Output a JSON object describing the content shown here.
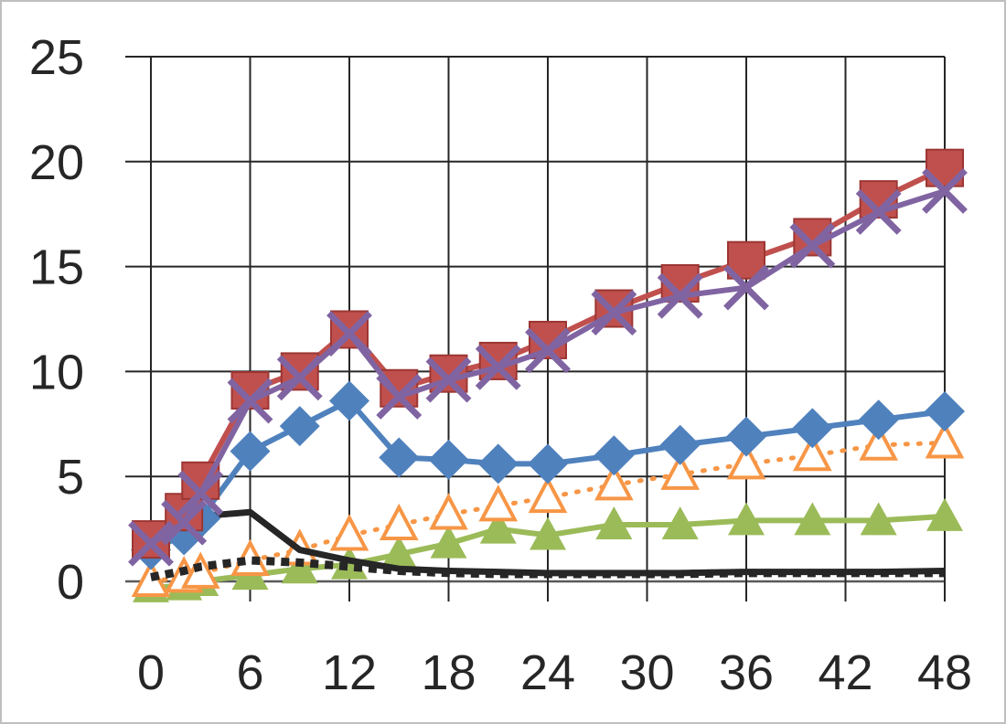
{
  "chart_data": {
    "type": "line",
    "title": "",
    "xlabel": "",
    "ylabel": "",
    "xlim": [
      0,
      48
    ],
    "ylim": [
      0,
      25
    ],
    "x_ticks": [
      "0",
      "6",
      "12",
      "18",
      "24",
      "30",
      "36",
      "42",
      "48"
    ],
    "y_ticks": [
      "0",
      "5",
      "10",
      "15",
      "20",
      "25"
    ],
    "grid": true,
    "legend": "none",
    "series": [
      {
        "color": "#c0504d",
        "marker": "square",
        "line_style": "solid",
        "x": [
          0,
          2,
          3,
          6,
          9,
          12,
          15,
          18,
          21,
          24,
          28,
          32,
          36,
          40,
          44,
          48
        ],
        "y": [
          2.0,
          3.3,
          4.8,
          9.1,
          10.0,
          12.0,
          9.2,
          9.9,
          10.5,
          11.5,
          13.0,
          14.2,
          15.3,
          16.4,
          18.2,
          19.7
        ]
      },
      {
        "color": "#8064a2",
        "marker": "x",
        "line_style": "solid",
        "x": [
          0,
          2,
          3,
          6,
          9,
          12,
          15,
          18,
          21,
          24,
          28,
          32,
          36,
          40,
          44,
          48
        ],
        "y": [
          1.8,
          2.8,
          4.2,
          8.6,
          9.7,
          11.8,
          8.8,
          9.6,
          10.2,
          11.0,
          12.8,
          13.6,
          14.0,
          16.0,
          17.6,
          18.6
        ]
      },
      {
        "color": "#4f81bd",
        "marker": "diamond",
        "line_style": "solid",
        "x": [
          0,
          2,
          3,
          6,
          9,
          12,
          15,
          18,
          21,
          24,
          28,
          32,
          36,
          40,
          44,
          48
        ],
        "y": [
          1.5,
          2.2,
          3.0,
          6.2,
          7.4,
          8.6,
          5.9,
          5.8,
          5.6,
          5.6,
          6.0,
          6.5,
          6.9,
          7.3,
          7.7,
          8.1
        ]
      },
      {
        "color": "#f79646",
        "marker": "triangle-open",
        "line_style": "dotted",
        "x": [
          0,
          2,
          3,
          6,
          9,
          12,
          15,
          18,
          21,
          24,
          28,
          32,
          36,
          40,
          44,
          48
        ],
        "y": [
          0.0,
          0.2,
          0.4,
          1.0,
          1.5,
          2.2,
          2.7,
          3.2,
          3.6,
          4.0,
          4.6,
          5.1,
          5.6,
          6.0,
          6.5,
          6.6
        ]
      },
      {
        "color": "#9bbb59",
        "marker": "triangle",
        "line_style": "solid",
        "x": [
          0,
          2,
          3,
          6,
          9,
          12,
          15,
          18,
          21,
          24,
          28,
          32,
          36,
          40,
          44,
          48
        ],
        "y": [
          -0.3,
          -0.2,
          0.0,
          0.3,
          0.6,
          0.8,
          1.3,
          1.8,
          2.5,
          2.2,
          2.7,
          2.7,
          2.9,
          2.9,
          2.9,
          3.1
        ]
      },
      {
        "color": "#262626",
        "marker": "none",
        "line_style": "solid",
        "x": [
          0,
          2,
          3,
          6,
          9,
          12,
          15,
          18,
          21,
          24,
          28,
          32,
          36,
          40,
          44,
          48
        ],
        "y": [
          1.9,
          2.2,
          3.1,
          3.3,
          1.5,
          1.0,
          0.6,
          0.5,
          0.45,
          0.4,
          0.4,
          0.4,
          0.45,
          0.45,
          0.45,
          0.5
        ]
      },
      {
        "color": "#262626",
        "marker": "none",
        "line_style": "dotted",
        "x": [
          0,
          2,
          3,
          6,
          9,
          12,
          15,
          18,
          21,
          24,
          28,
          32,
          36,
          40,
          44,
          48
        ],
        "y": [
          0.2,
          0.5,
          0.7,
          1.0,
          0.9,
          0.7,
          0.5,
          0.4,
          0.35,
          0.35,
          0.35,
          0.35,
          0.4,
          0.4,
          0.4,
          0.4
        ]
      }
    ]
  }
}
